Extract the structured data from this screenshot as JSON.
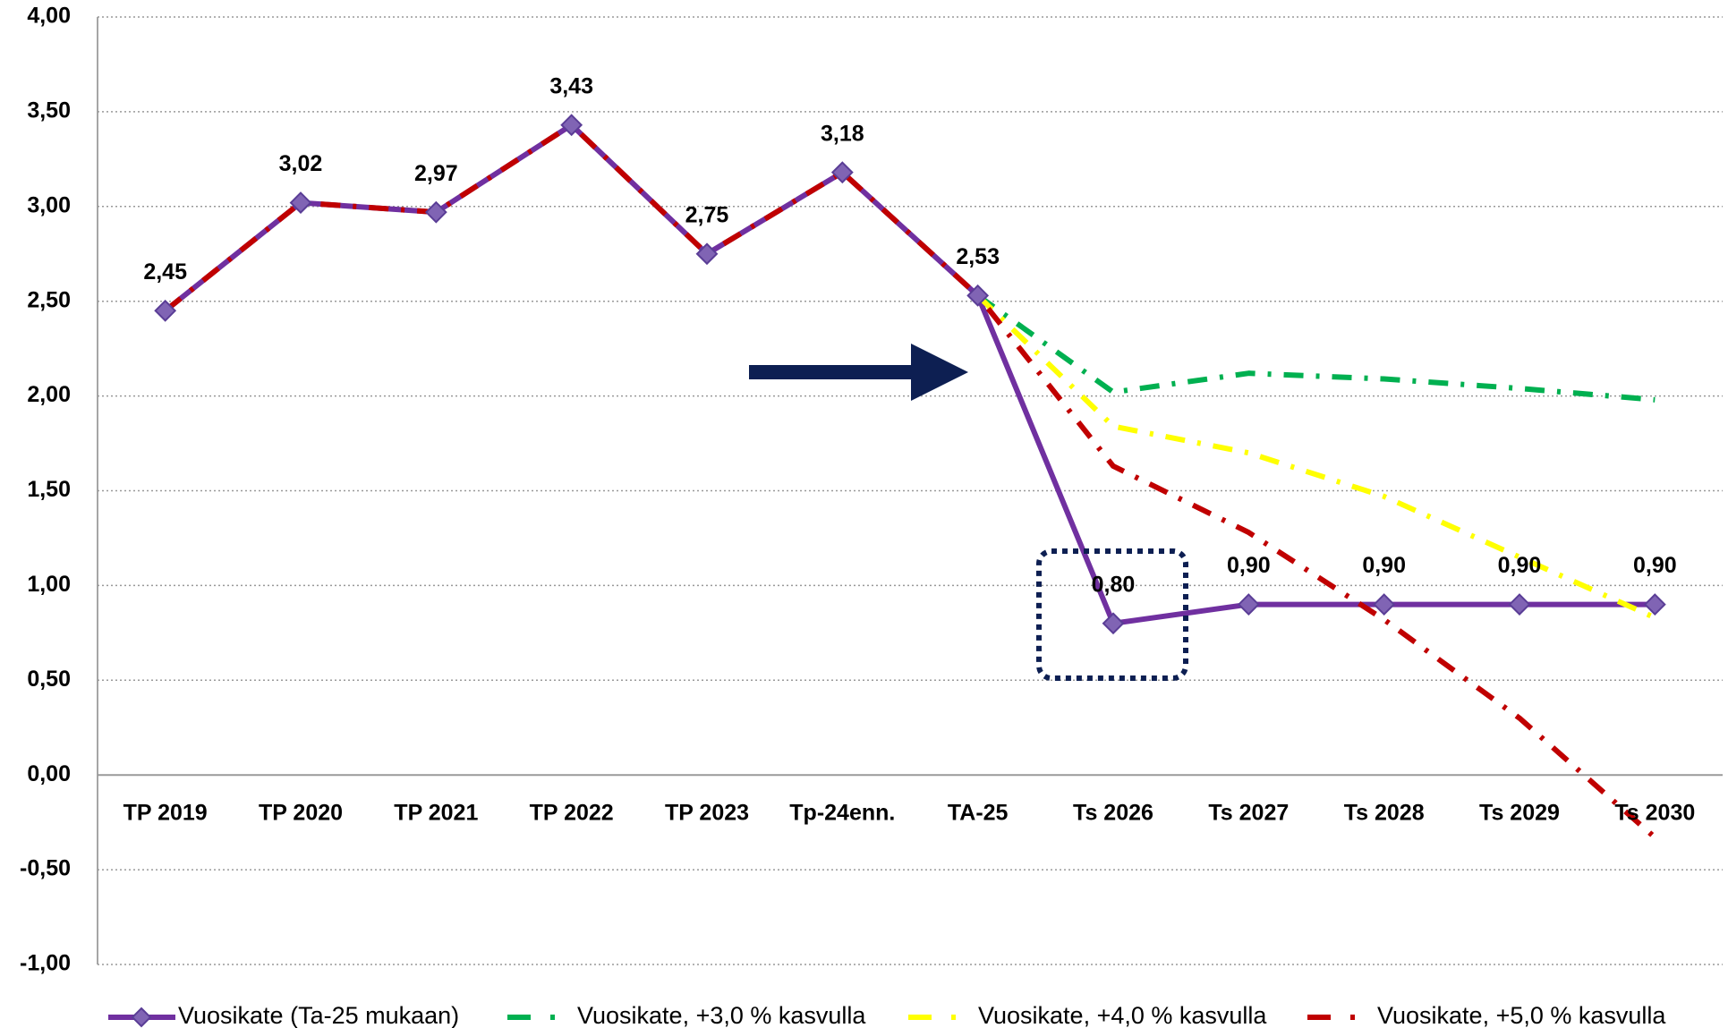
{
  "chart_data": {
    "type": "line",
    "categories": [
      "TP 2019",
      "TP 2020",
      "TP 2021",
      "TP 2022",
      "TP 2023",
      "Tp-24enn.",
      "TA-25",
      "Ts 2026",
      "Ts 2027",
      "Ts 2028",
      "Ts 2029",
      "Ts 2030"
    ],
    "series": [
      {
        "name": "Vuosikate (Ta-25 mukaan)",
        "color": "#7030a0",
        "dash": "solid",
        "marker": "diamond",
        "values": [
          2.45,
          3.02,
          2.97,
          3.43,
          2.75,
          3.18,
          2.53,
          0.8,
          0.9,
          0.9,
          0.9,
          0.9
        ],
        "value_labels": [
          "2,45",
          "3,02",
          "2,97",
          "3,43",
          "2,75",
          "3,18",
          "2,53",
          "0,80",
          "0,90",
          "0,90",
          "0,90",
          "0,90"
        ]
      },
      {
        "name": "Vuosikate, +3,0 % kasvulla",
        "color": "#00b050",
        "dash": "dashdot",
        "values": [
          null,
          null,
          null,
          null,
          null,
          null,
          2.53,
          2.02,
          2.12,
          2.09,
          2.04,
          1.98
        ]
      },
      {
        "name": "Vuosikate, +4,0 % kasvulla",
        "color": "#ffff00",
        "dash": "dashdot",
        "values": [
          null,
          null,
          null,
          null,
          null,
          null,
          2.53,
          1.84,
          1.7,
          1.47,
          1.15,
          0.83
        ]
      },
      {
        "name": "Vuosikate, +5,0 % kasvulla",
        "color": "#c00000",
        "dash": "dashdot",
        "values": [
          2.45,
          3.02,
          2.97,
          3.43,
          2.75,
          3.18,
          2.53,
          1.63,
          1.28,
          0.82,
          0.3,
          -0.33
        ]
      }
    ],
    "ylim": [
      -1,
      4
    ],
    "yticks": [
      {
        "value": -1,
        "label": "-1,00"
      },
      {
        "value": -0.5,
        "label": "-0,50"
      },
      {
        "value": 0,
        "label": "0,00"
      },
      {
        "value": 0.5,
        "label": "0,50"
      },
      {
        "value": 1,
        "label": "1,00"
      },
      {
        "value": 1.5,
        "label": "1,50"
      },
      {
        "value": 2,
        "label": "2,00"
      },
      {
        "value": 2.5,
        "label": "2,50"
      },
      {
        "value": 3,
        "label": "3,00"
      },
      {
        "value": 3.5,
        "label": "3,50"
      },
      {
        "value": 4,
        "label": "4,00"
      }
    ],
    "grid": true,
    "legend": "bottom"
  }
}
